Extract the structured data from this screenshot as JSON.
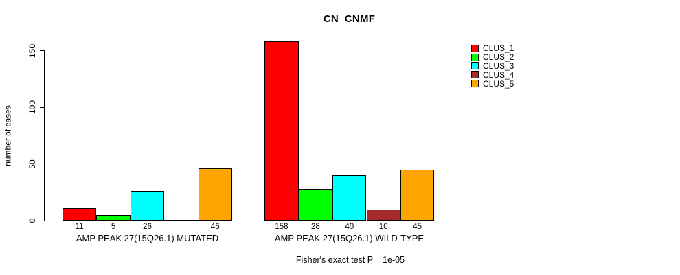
{
  "chart_data": {
    "type": "bar",
    "title": "CN_CNMF",
    "xlabel": "",
    "ylabel": "number of cases",
    "groups": [
      "AMP PEAK 27(15Q26.1) MUTATED",
      "AMP PEAK 27(15Q26.1) WILD-TYPE"
    ],
    "series": [
      {
        "name": "CLUS_1",
        "color": "#FF0000",
        "values": [
          11,
          158
        ]
      },
      {
        "name": "CLUS_2",
        "color": "#00FF00",
        "values": [
          5,
          28
        ]
      },
      {
        "name": "CLUS_3",
        "color": "#00FFFF",
        "values": [
          26,
          40
        ]
      },
      {
        "name": "CLUS_4",
        "color": "#A52A2A",
        "values": [
          0,
          10
        ]
      },
      {
        "name": "CLUS_5",
        "color": "#FFA500",
        "values": [
          46,
          45
        ]
      }
    ],
    "value_labels": [
      [
        "11",
        "5",
        "26",
        "",
        "46"
      ],
      [
        "158",
        "28",
        "40",
        "10",
        "45"
      ]
    ],
    "yticks": [
      0,
      50,
      100,
      150
    ],
    "ylim": [
      0,
      160
    ],
    "grid": false,
    "legend_position": "top-right",
    "annotation": "Fisher's exact test P = 1e-05"
  }
}
